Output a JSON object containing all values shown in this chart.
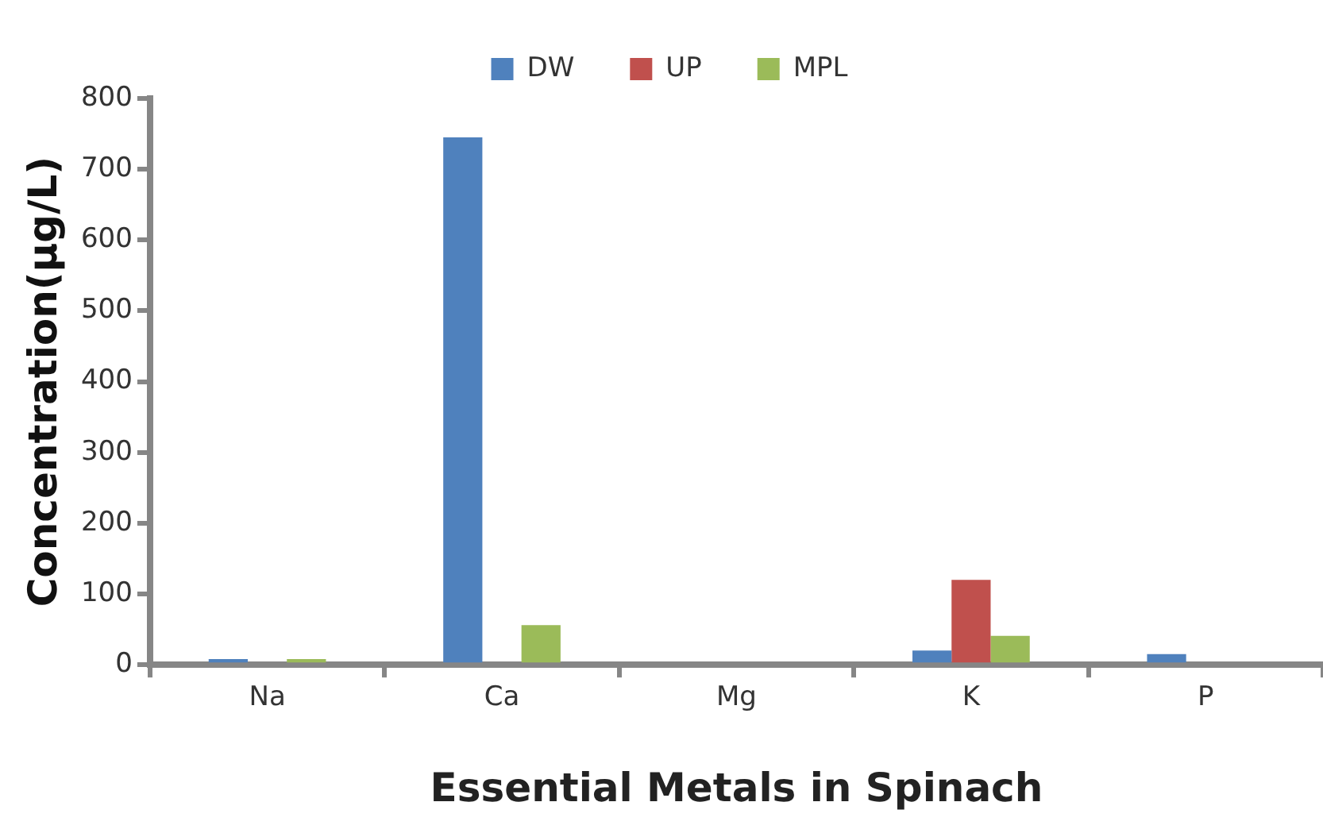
{
  "chart_data": {
    "type": "bar",
    "xlabel": "Essential Metals in Spinach",
    "ylabel": "Concentration(µg/L)",
    "categories": [
      "Na",
      "Ca",
      "Mg",
      "K",
      "P"
    ],
    "series": [
      {
        "name": "DW",
        "color": "#4f81bd",
        "values": [
          8,
          745,
          0,
          20,
          15
        ]
      },
      {
        "name": "UP",
        "color": "#c0504d",
        "values": [
          0,
          0,
          0,
          120,
          0
        ]
      },
      {
        "name": "MPL",
        "color": "#9bbb59",
        "values": [
          8,
          56,
          0,
          41,
          0
        ]
      }
    ],
    "ylim": [
      0,
      800
    ],
    "yticks": [
      0,
      100,
      200,
      300,
      400,
      500,
      600,
      700,
      800
    ],
    "grid": false,
    "legend": "top"
  }
}
